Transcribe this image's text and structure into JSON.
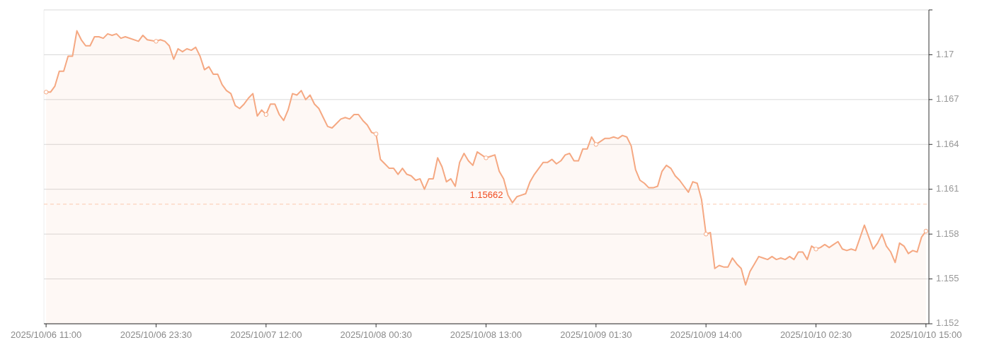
{
  "chart_data": {
    "type": "area",
    "x": [
      "2025-10-06T11:00",
      "2025-10-06T11:30",
      "2025-10-06T12:00",
      "2025-10-06T12:30",
      "2025-10-06T13:00",
      "2025-10-06T13:30",
      "2025-10-06T14:00",
      "2025-10-06T14:30",
      "2025-10-06T15:00",
      "2025-10-06T15:30",
      "2025-10-06T16:00",
      "2025-10-06T16:30",
      "2025-10-06T17:00",
      "2025-10-06T17:30",
      "2025-10-06T18:00",
      "2025-10-06T18:30",
      "2025-10-06T19:00",
      "2025-10-06T19:30",
      "2025-10-06T20:00",
      "2025-10-06T21:30",
      "2025-10-06T22:00",
      "2025-10-06T22:30",
      "2025-10-06T23:30",
      "2025-10-07T00:00",
      "2025-10-07T00:30",
      "2025-10-07T01:00",
      "2025-10-07T01:30",
      "2025-10-07T02:00",
      "2025-10-07T02:30",
      "2025-10-07T03:00",
      "2025-10-07T03:30",
      "2025-10-07T04:00",
      "2025-10-07T04:30",
      "2025-10-07T05:00",
      "2025-10-07T05:30",
      "2025-10-07T06:00",
      "2025-10-07T06:30",
      "2025-10-07T07:00",
      "2025-10-07T07:30",
      "2025-10-07T08:00",
      "2025-10-07T08:30",
      "2025-10-07T09:00",
      "2025-10-07T09:30",
      "2025-10-07T10:00",
      "2025-10-07T10:30",
      "2025-10-07T11:00",
      "2025-10-07T11:30",
      "2025-10-07T12:00",
      "2025-10-07T12:30",
      "2025-10-07T13:00",
      "2025-10-07T13:30",
      "2025-10-07T14:00",
      "2025-10-07T14:30",
      "2025-10-07T15:00",
      "2025-10-07T15:30",
      "2025-10-07T16:00",
      "2025-10-07T16:30",
      "2025-10-07T17:00",
      "2025-10-07T17:30",
      "2025-10-07T18:00",
      "2025-10-07T18:30",
      "2025-10-07T19:00",
      "2025-10-07T19:30",
      "2025-10-07T20:00",
      "2025-10-07T20:30",
      "2025-10-07T21:00",
      "2025-10-07T21:30",
      "2025-10-07T22:00",
      "2025-10-07T22:30",
      "2025-10-07T23:00",
      "2025-10-07T23:30",
      "2025-10-08T00:00",
      "2025-10-08T00:30",
      "2025-10-08T01:00",
      "2025-10-08T01:30",
      "2025-10-08T02:00",
      "2025-10-08T02:30",
      "2025-10-08T03:00",
      "2025-10-08T03:30",
      "2025-10-08T04:00",
      "2025-10-08T04:30",
      "2025-10-08T05:00",
      "2025-10-08T05:30",
      "2025-10-08T06:00",
      "2025-10-08T06:30",
      "2025-10-08T07:00",
      "2025-10-08T07:30",
      "2025-10-08T08:00",
      "2025-10-08T08:30",
      "2025-10-08T09:00",
      "2025-10-08T09:30",
      "2025-10-08T10:00",
      "2025-10-08T10:30",
      "2025-10-08T11:00",
      "2025-10-08T11:30",
      "2025-10-08T12:00",
      "2025-10-08T12:30",
      "2025-10-08T13:00",
      "2025-10-08T13:30",
      "2025-10-08T14:00",
      "2025-10-08T14:30",
      "2025-10-08T15:00",
      "2025-10-08T15:30",
      "2025-10-08T16:00",
      "2025-10-08T16:30",
      "2025-10-08T17:00",
      "2025-10-08T17:30",
      "2025-10-08T18:00",
      "2025-10-08T18:30",
      "2025-10-08T19:00",
      "2025-10-08T19:30",
      "2025-10-08T20:00",
      "2025-10-08T20:30",
      "2025-10-08T21:00",
      "2025-10-08T21:30",
      "2025-10-08T22:00",
      "2025-10-08T22:30",
      "2025-10-08T23:00",
      "2025-10-08T23:30",
      "2025-10-09T00:00",
      "2025-10-09T00:30",
      "2025-10-09T01:00",
      "2025-10-09T01:30",
      "2025-10-09T02:00",
      "2025-10-09T02:30",
      "2025-10-09T03:00",
      "2025-10-09T03:30",
      "2025-10-09T04:00",
      "2025-10-09T04:30",
      "2025-10-09T05:00",
      "2025-10-09T05:30",
      "2025-10-09T06:00",
      "2025-10-09T06:30",
      "2025-10-09T07:00",
      "2025-10-09T07:30",
      "2025-10-09T08:00",
      "2025-10-09T08:30",
      "2025-10-09T09:00",
      "2025-10-09T09:30",
      "2025-10-09T10:00",
      "2025-10-09T10:30",
      "2025-10-09T11:00",
      "2025-10-09T11:30",
      "2025-10-09T12:00",
      "2025-10-09T12:30",
      "2025-10-09T13:00",
      "2025-10-09T13:30",
      "2025-10-09T14:00",
      "2025-10-09T14:30",
      "2025-10-09T15:00",
      "2025-10-09T15:30",
      "2025-10-09T16:00",
      "2025-10-09T16:30",
      "2025-10-09T17:00",
      "2025-10-09T17:30",
      "2025-10-09T18:00",
      "2025-10-09T18:30",
      "2025-10-09T19:00",
      "2025-10-09T19:30",
      "2025-10-09T20:00",
      "2025-10-09T20:30",
      "2025-10-09T21:00",
      "2025-10-09T21:30",
      "2025-10-09T22:00",
      "2025-10-09T22:30",
      "2025-10-09T23:00",
      "2025-10-09T23:30",
      "2025-10-10T00:00",
      "2025-10-10T00:30",
      "2025-10-10T01:00",
      "2025-10-10T01:30",
      "2025-10-10T02:00",
      "2025-10-10T02:30",
      "2025-10-10T03:00",
      "2025-10-10T03:30",
      "2025-10-10T04:00",
      "2025-10-10T04:30",
      "2025-10-10T05:00",
      "2025-10-10T05:30",
      "2025-10-10T06:00",
      "2025-10-10T06:30",
      "2025-10-10T07:00",
      "2025-10-10T08:00",
      "2025-10-10T09:00",
      "2025-10-10T09:30",
      "2025-10-10T10:00",
      "2025-10-10T10:30",
      "2025-10-10T11:00",
      "2025-10-10T11:30",
      "2025-10-10T12:00",
      "2025-10-10T12:30",
      "2025-10-10T13:00",
      "2025-10-10T13:30",
      "2025-10-10T14:00",
      "2025-10-10T14:30",
      "2025-10-10T15:00"
    ],
    "series": [
      {
        "color": "#f5a882",
        "values": [
          1.1675,
          1.1675,
          1.1679,
          1.1689,
          1.1689,
          1.1699,
          1.1699,
          1.1716,
          1.171,
          1.1706,
          1.1706,
          1.1712,
          1.1712,
          1.1711,
          1.1714,
          1.1713,
          1.1714,
          1.1711,
          1.1712,
          1.1709,
          1.1713,
          1.171,
          1.1709,
          1.171,
          1.1709,
          1.1706,
          1.1697,
          1.1704,
          1.1702,
          1.1704,
          1.1703,
          1.1705,
          1.1699,
          1.169,
          1.1692,
          1.1687,
          1.1687,
          1.168,
          1.1676,
          1.1674,
          1.1666,
          1.1664,
          1.1667,
          1.1671,
          1.1674,
          1.1659,
          1.1663,
          1.166,
          1.1667,
          1.1667,
          1.166,
          1.1656,
          1.1663,
          1.1674,
          1.1673,
          1.1676,
          1.167,
          1.1673,
          1.1667,
          1.1664,
          1.1658,
          1.1652,
          1.1651,
          1.1654,
          1.1657,
          1.1658,
          1.1657,
          1.166,
          1.166,
          1.1656,
          1.1653,
          1.1648,
          1.1647,
          1.163,
          1.1627,
          1.1624,
          1.1624,
          1.162,
          1.1624,
          1.162,
          1.1619,
          1.1616,
          1.1617,
          1.161,
          1.1617,
          1.1617,
          1.1631,
          1.1625,
          1.1615,
          1.1617,
          1.1612,
          1.1628,
          1.1634,
          1.1629,
          1.1626,
          1.1635,
          1.1633,
          1.1631,
          1.1632,
          1.1633,
          1.1622,
          1.1617,
          1.1606,
          1.1601,
          1.1605,
          1.1606,
          1.1607,
          1.1615,
          1.162,
          1.1624,
          1.1628,
          1.1628,
          1.163,
          1.1627,
          1.1629,
          1.1633,
          1.1634,
          1.1629,
          1.1629,
          1.1637,
          1.1637,
          1.1645,
          1.164,
          1.1642,
          1.1644,
          1.1644,
          1.1645,
          1.1644,
          1.1646,
          1.1645,
          1.1639,
          1.1623,
          1.1616,
          1.1614,
          1.1611,
          1.1611,
          1.1612,
          1.1622,
          1.1626,
          1.1624,
          1.1619,
          1.1616,
          1.1612,
          1.1608,
          1.1615,
          1.1614,
          1.1603,
          1.158,
          1.1581,
          1.1557,
          1.1559,
          1.1558,
          1.1558,
          1.1564,
          1.156,
          1.1557,
          1.1546,
          1.1555,
          1.156,
          1.1565,
          1.1564,
          1.1563,
          1.1565,
          1.1563,
          1.1564,
          1.1563,
          1.1565,
          1.1563,
          1.1568,
          1.1568,
          1.1563,
          1.1572,
          1.157,
          1.1571,
          1.1573,
          1.1571,
          1.1573,
          1.1575,
          1.157,
          1.1569,
          1.157,
          1.1569,
          1.1586,
          1.157,
          1.1574,
          1.158,
          1.1572,
          1.1568,
          1.1561,
          1.1574,
          1.1572,
          1.1567,
          1.1569,
          1.1568,
          1.1578,
          1.1582
        ]
      },
      {
        "type": "scatter",
        "color": "#f5a882",
        "marker": "circle",
        "x": [
          "2025-10-06T11:00",
          "2025-10-06T23:30",
          "2025-10-07T12:00",
          "2025-10-08T00:30",
          "2025-10-08T13:00",
          "2025-10-09T01:30",
          "2025-10-09T14:00",
          "2025-10-10T02:30",
          "2025-10-10T15:00"
        ],
        "values": [
          1.1675,
          1.1709,
          1.166,
          1.1647,
          1.1631,
          1.164,
          1.158,
          1.157,
          1.1582
        ]
      }
    ],
    "xlim": [
      "2025-10-06T10:45",
      "2025-10-10T15:20"
    ],
    "xticks": [
      {
        "value": "2025-10-06T11:00",
        "label": "2025/10/06 11:00"
      },
      {
        "value": "2025-10-06T23:30",
        "label": "2025/10/06 23:30"
      },
      {
        "value": "2025-10-07T12:00",
        "label": "2025/10/07 12:00"
      },
      {
        "value": "2025-10-08T00:30",
        "label": "2025/10/08 00:30"
      },
      {
        "value": "2025-10-08T13:00",
        "label": "2025/10/08 13:00"
      },
      {
        "value": "2025-10-09T01:30",
        "label": "2025/10/09 01:30"
      },
      {
        "value": "2025-10-09T14:00",
        "label": "2025/10/09 14:00"
      },
      {
        "value": "2025-10-10T02:30",
        "label": "2025/10/10 02:30"
      },
      {
        "value": "2025-10-10T15:00",
        "label": "2025/10/10 15:00"
      }
    ],
    "ylim": [
      1.152,
      1.173
    ],
    "yticks": [
      1.152,
      1.155,
      1.158,
      1.161,
      1.164,
      1.167,
      1.17,
      {
        "value": 1.173,
        "label": null
      }
    ],
    "grid": "y",
    "ref_lines": [
      {
        "axis": "y",
        "value": 1.16,
        "color": "#fbc8ad",
        "line_style": "dashed"
      }
    ],
    "annotations": [
      "1.15662"
    ]
  }
}
